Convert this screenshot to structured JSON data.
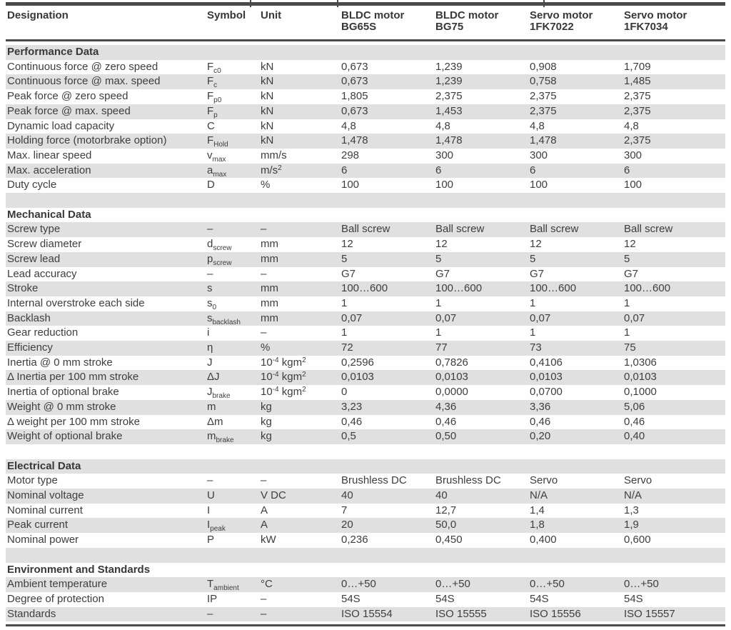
{
  "colors": {
    "stripe": "#e0e0e0",
    "rule": "#4a4a4a",
    "text": "#3e3e3e",
    "bg": "#fefefe"
  },
  "table": {
    "columns": [
      {
        "label": "Designation"
      },
      {
        "label": "Symbol"
      },
      {
        "label": "Unit"
      },
      {
        "label": "BLDC motor",
        "label2": "BG65S"
      },
      {
        "label": "BLDC motor",
        "label2": "BG75"
      },
      {
        "label": "Servo motor",
        "label2": "1FK7022"
      },
      {
        "label": "Servo motor",
        "label2": "1FK7034"
      }
    ],
    "rows": [
      {
        "type": "section",
        "label": "Performance Data"
      },
      {
        "type": "data",
        "designation": "Continuous force @ zero speed",
        "symbol": "F_{c0}",
        "unit": "kN",
        "values": [
          "0,673",
          "1,239",
          "0,908",
          "1,709"
        ]
      },
      {
        "type": "data",
        "designation": "Continuous force @ max. speed",
        "symbol": "F_{c}",
        "unit": "kN",
        "values": [
          "0,673",
          "1,239",
          "0,758",
          "1,485"
        ]
      },
      {
        "type": "data",
        "designation": "Peak force @ zero speed",
        "symbol": "F_{p0}",
        "unit": "kN",
        "values": [
          "1,805",
          "2,375",
          "2,375",
          "2,375"
        ]
      },
      {
        "type": "data",
        "designation": "Peak force @ max. speed",
        "symbol": "F_{p}",
        "unit": "kN",
        "values": [
          "0,673",
          "1,453",
          "2,375",
          "2,375"
        ]
      },
      {
        "type": "data",
        "designation": "Dynamic load capacity",
        "symbol": "C",
        "unit": "kN",
        "values": [
          "4,8",
          "4,8",
          "4,8",
          "4,8"
        ]
      },
      {
        "type": "data",
        "designation": "Holding force (motorbrake option)",
        "symbol": "F_{Hold}",
        "unit": "kN",
        "values": [
          "1,478",
          "1,478",
          "1,478",
          "2,375"
        ]
      },
      {
        "type": "data",
        "designation": "Max. linear speed",
        "symbol": "v_{max}",
        "unit": "mm/s",
        "values": [
          "298",
          "300",
          "300",
          "300"
        ]
      },
      {
        "type": "data",
        "designation": "Max. acceleration",
        "symbol": "a_{max}",
        "unit": "m/s^{2}",
        "values": [
          "6",
          "6",
          "6",
          "6"
        ]
      },
      {
        "type": "data",
        "designation": "Duty cycle",
        "symbol": "D",
        "unit": "%",
        "values": [
          "100",
          "100",
          "100",
          "100"
        ]
      },
      {
        "type": "spacer"
      },
      {
        "type": "section",
        "label": "Mechanical Data"
      },
      {
        "type": "data",
        "designation": "Screw type",
        "symbol": "–",
        "unit": "–",
        "values": [
          "Ball screw",
          "Ball screw",
          "Ball screw",
          "Ball screw"
        ]
      },
      {
        "type": "data",
        "designation": "Screw diameter",
        "symbol": "d_{screw}",
        "unit": "mm",
        "values": [
          "12",
          "12",
          "12",
          "12"
        ]
      },
      {
        "type": "data",
        "designation": "Screw lead",
        "symbol": "p_{screw}",
        "unit": "mm",
        "values": [
          "5",
          "5",
          "5",
          "5"
        ]
      },
      {
        "type": "data",
        "designation": "Lead accuracy",
        "symbol": "–",
        "unit": "–",
        "values": [
          "G7",
          "G7",
          "G7",
          "G7"
        ]
      },
      {
        "type": "data",
        "designation": "Stroke",
        "symbol": "s",
        "unit": "mm",
        "values": [
          "100…600",
          "100…600",
          "100…600",
          "100…600"
        ]
      },
      {
        "type": "data",
        "designation": "Internal overstroke each side",
        "symbol": "s_{0}",
        "unit": "mm",
        "values": [
          "1",
          "1",
          "1",
          "1"
        ]
      },
      {
        "type": "data",
        "designation": "Backlash",
        "symbol": "s_{backlash}",
        "unit": "mm",
        "values": [
          "0,07",
          "0,07",
          "0,07",
          "0,07"
        ]
      },
      {
        "type": "data",
        "designation": "Gear reduction",
        "symbol": "i",
        "unit": "–",
        "values": [
          "1",
          "1",
          "1",
          "1"
        ]
      },
      {
        "type": "data",
        "designation": "Efficiency",
        "symbol": "η",
        "unit": "%",
        "values": [
          "72",
          "77",
          "73",
          "75"
        ]
      },
      {
        "type": "data",
        "designation": "Inertia @ 0 mm stroke",
        "symbol": "J",
        "unit": "10^{-4} kgm^{2}",
        "values": [
          "0,2596",
          "0,7826",
          "0,4106",
          "1,0306"
        ]
      },
      {
        "type": "data",
        "designation": "Δ Inertia per 100 mm stroke",
        "symbol": "ΔJ",
        "unit": "10^{-4} kgm^{2}",
        "values": [
          "0,0103",
          "0,0103",
          "0,0103",
          "0,0103"
        ]
      },
      {
        "type": "data",
        "designation": "Inertia of optional brake",
        "symbol": "J_{brake}",
        "unit": "10^{-4} kgm^{2}",
        "values": [
          "0",
          "0,0000",
          "0,0700",
          "0,1000"
        ]
      },
      {
        "type": "data",
        "designation": "Weight @ 0 mm stroke",
        "symbol": "m",
        "unit": "kg",
        "values": [
          "3,23",
          "4,36",
          "3,36",
          "5,06"
        ]
      },
      {
        "type": "data",
        "designation": "Δ weight per 100 mm stroke",
        "symbol": "Δm",
        "unit": "kg",
        "values": [
          "0,46",
          "0,46",
          "0,46",
          "0,46"
        ]
      },
      {
        "type": "data",
        "designation": "Weight of optional brake",
        "symbol": "m_{brake}",
        "unit": "kg",
        "values": [
          "0,5",
          "0,50",
          "0,20",
          "0,40"
        ]
      },
      {
        "type": "spacer"
      },
      {
        "type": "section",
        "label": "Electrical Data"
      },
      {
        "type": "data",
        "designation": "Motor type",
        "symbol": "–",
        "unit": "–",
        "values": [
          "Brushless DC",
          "Brushless DC",
          "Servo",
          "Servo"
        ]
      },
      {
        "type": "data",
        "designation": "Nominal voltage",
        "symbol": "U",
        "unit": "V DC",
        "values": [
          "40",
          "40",
          "N/A",
          "N/A"
        ]
      },
      {
        "type": "data",
        "designation": "Nominal current",
        "symbol": "I",
        "unit": "A",
        "values": [
          "7",
          "12,7",
          "1,4",
          "1,3"
        ]
      },
      {
        "type": "data",
        "designation": "Peak current",
        "symbol": "I_{peak}",
        "unit": "A",
        "values": [
          "20",
          "50,0",
          "1,8",
          "1,9"
        ]
      },
      {
        "type": "data",
        "designation": "Nominal power",
        "symbol": "P",
        "unit": "kW",
        "values": [
          "0,236",
          "0,450",
          "0,400",
          "0,600"
        ]
      },
      {
        "type": "spacer"
      },
      {
        "type": "section",
        "label": "Environment and Standards"
      },
      {
        "type": "data",
        "designation": "Ambient temperature",
        "symbol": "T_{ambient}",
        "unit": "°C",
        "values": [
          "0…+50",
          "0…+50",
          "0…+50",
          "0…+50"
        ]
      },
      {
        "type": "data",
        "designation": "Degree of protection",
        "symbol": "IP",
        "unit": "–",
        "values": [
          "54S",
          "54S",
          "54S",
          "54S"
        ]
      },
      {
        "type": "data",
        "designation": "Standards",
        "symbol": "–",
        "unit": "–",
        "values": [
          "ISO 15554",
          "ISO 15555",
          "ISO 15556",
          "ISO 15557"
        ]
      }
    ]
  }
}
